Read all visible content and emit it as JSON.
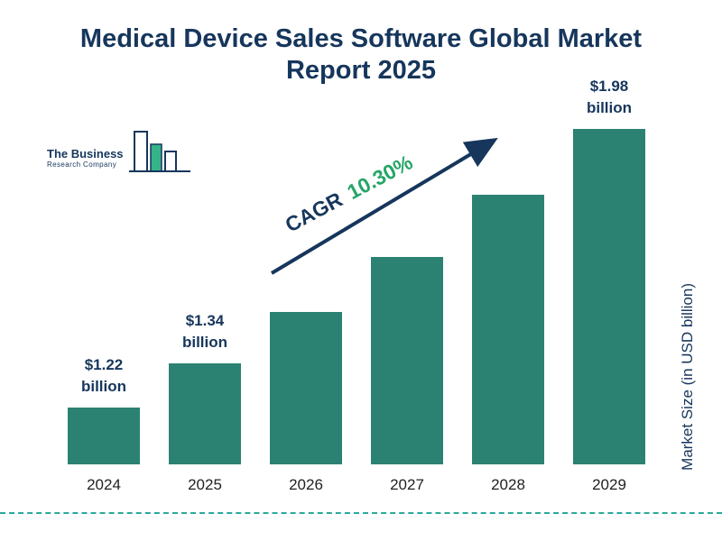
{
  "header": {
    "title_line1": "Medical Device Sales Software Global Market",
    "title_line2": "Report 2025"
  },
  "logo": {
    "line1": "The Business",
    "line2": "Research Company"
  },
  "annotation": {
    "cagr_label": "CAGR",
    "cagr_value": "10.30%"
  },
  "axis": {
    "ylabel": "Market Size (in USD billion)"
  },
  "colors": {
    "navy": "#16365C",
    "green": "#27A567",
    "bar": "#2B8272",
    "dashed_line": "#2BA89F",
    "axis_text": "#222222",
    "logo_green": "#35B389"
  },
  "chart_data": {
    "type": "bar",
    "title": "Medical Device Sales Software Global Market Report 2025",
    "categories": [
      "2024",
      "2025",
      "2026",
      "2027",
      "2028",
      "2029"
    ],
    "values": [
      1.22,
      1.34,
      1.48,
      1.63,
      1.8,
      1.98
    ],
    "value_labels": [
      {
        "index": 0,
        "amount": "$1.22",
        "unit": "billion"
      },
      {
        "index": 1,
        "amount": "$1.34",
        "unit": "billion"
      },
      {
        "index": 5,
        "amount": "$1.98",
        "unit": "billion"
      }
    ],
    "xlabel": "",
    "ylabel": "Market Size (in USD billion)",
    "ylim": [
      1.0,
      2.0
    ],
    "cagr": "10.30%",
    "legend": "none",
    "grid": false
  }
}
